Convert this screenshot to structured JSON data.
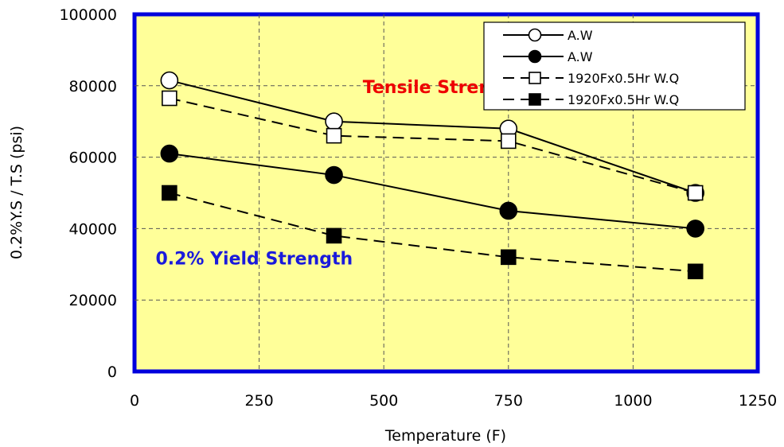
{
  "chart_data": {
    "type": "line",
    "xlabel": "Temperature (F)",
    "ylabel": "0.2%Y.S / T.S (psi)",
    "xlim": [
      0,
      1250
    ],
    "ylim": [
      0,
      100000
    ],
    "x_ticks": [
      "0",
      "250",
      "500",
      "750",
      "1000",
      "1250"
    ],
    "y_ticks": [
      "0",
      "20000",
      "40000",
      "60000",
      "80000",
      "100000"
    ],
    "x_tick_values": [
      0,
      250,
      500,
      750,
      1000,
      1250
    ],
    "y_tick_values": [
      0,
      20000,
      40000,
      60000,
      80000,
      100000
    ],
    "grid": true,
    "legend_position": "top-right",
    "plot_background": "#ffff99",
    "plot_border_color": "#0000dd",
    "series": [
      {
        "name": "A.W",
        "marker": "open-circle",
        "line": "solid",
        "x": [
          70,
          400,
          750,
          1125
        ],
        "values": [
          81500,
          70000,
          68000,
          50000
        ]
      },
      {
        "name": "A.W",
        "marker": "filled-circle",
        "line": "solid",
        "x": [
          70,
          400,
          750,
          1125
        ],
        "values": [
          61000,
          55000,
          45000,
          40000
        ]
      },
      {
        "name": "1920Fx0.5Hr W.Q",
        "marker": "open-square",
        "line": "dashed",
        "x": [
          70,
          400,
          750,
          1125
        ],
        "values": [
          76500,
          66000,
          64500,
          50000
        ]
      },
      {
        "name": "1920Fx0.5Hr W.Q",
        "marker": "filled-square",
        "line": "dashed",
        "x": [
          70,
          400,
          750,
          1125
        ],
        "values": [
          50000,
          38000,
          32000,
          28000
        ]
      }
    ],
    "annotations": [
      {
        "text": "Tensile Strength",
        "color": "#ee0000",
        "x": 620,
        "y": 78000
      },
      {
        "text": "0.2% Yield Strength",
        "color": "#1a1adc",
        "x": 240,
        "y": 30000
      }
    ]
  }
}
